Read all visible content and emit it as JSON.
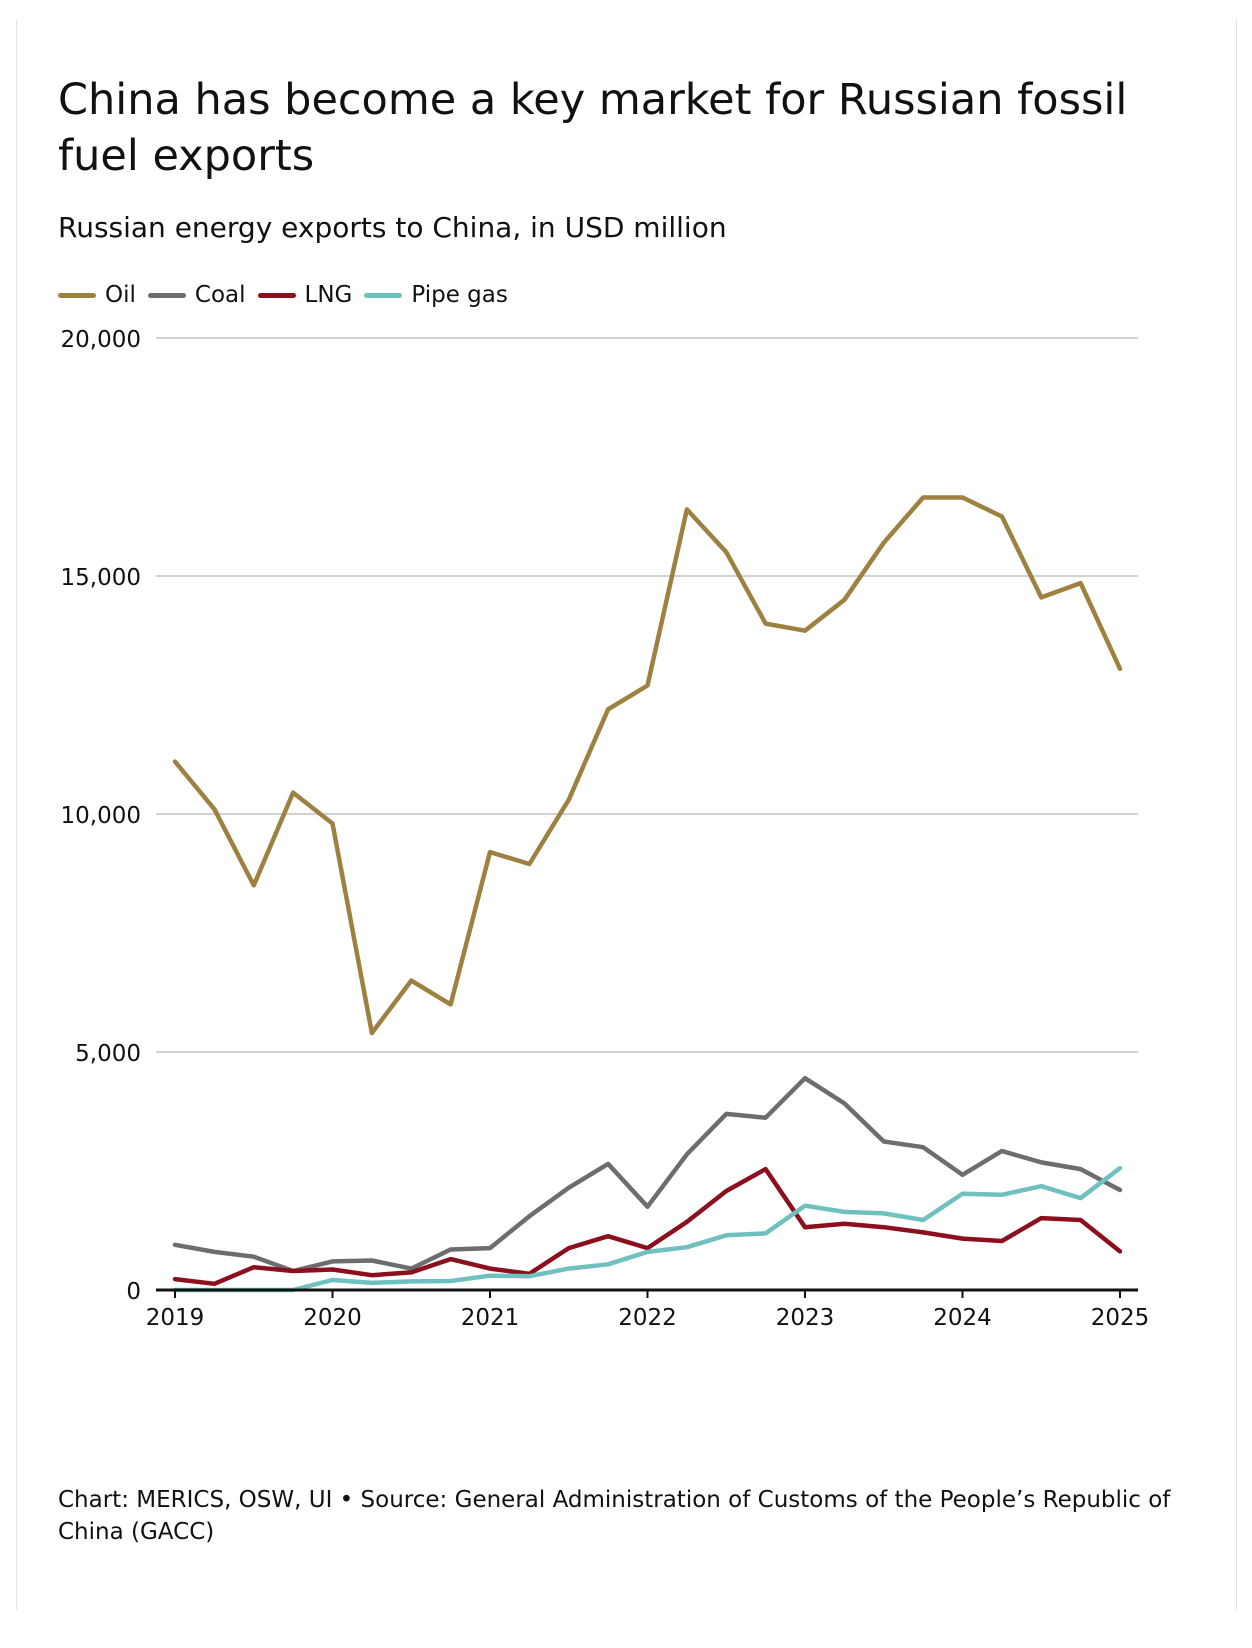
{
  "header": {
    "title": "China has become a key market for Russian fossil fuel exports",
    "subtitle": "Russian energy exports to China, in USD million"
  },
  "legend": [
    {
      "label": "Oil",
      "color": "#9e8140"
    },
    {
      "label": "Coal",
      "color": "#6d6d6f"
    },
    {
      "label": "LNG",
      "color": "#8c0f1e"
    },
    {
      "label": "Pipe gas",
      "color": "#6fc1c0"
    }
  ],
  "footer": {
    "source": "Chart: MERICS, OSW, UI • Source: General Administration of Customs of the People’s Republic of China (GACC)"
  },
  "chart_data": {
    "type": "line",
    "title": "China has become a key market for Russian fossil fuel exports",
    "subtitle": "Russian energy exports to China, in USD million",
    "xlabel": "",
    "ylabel": "",
    "x_tick_labels": [
      "2019",
      "2020",
      "2021",
      "2022",
      "2023",
      "2024",
      "2025"
    ],
    "y_tick_labels": [
      "0",
      "5,000",
      "10,000",
      "15,000",
      "20,000"
    ],
    "y_ticks": [
      0,
      5000,
      10000,
      15000,
      20000
    ],
    "xlim": [
      2019,
      2025
    ],
    "ylim": [
      0,
      20000
    ],
    "grid": "horizontal",
    "legend_position": "top-left",
    "x": [
      2019,
      2019.25,
      2019.5,
      2019.75,
      2020,
      2020.25,
      2020.5,
      2020.75,
      2021,
      2021.25,
      2021.5,
      2021.75,
      2022,
      2022.25,
      2022.5,
      2022.75,
      2023,
      2023.25,
      2023.5,
      2023.75,
      2024,
      2024.25,
      2024.5,
      2024.75,
      2025
    ],
    "series": [
      {
        "name": "Oil",
        "color": "#9e8140",
        "values": [
          11100,
          10100,
          8500,
          10450,
          9800,
          5400,
          6500,
          6000,
          9200,
          8950,
          10300,
          12200,
          12700,
          16400,
          15500,
          14000,
          13850,
          14500,
          15700,
          16650,
          16650,
          16250,
          14550,
          14850,
          13050
        ]
      },
      {
        "name": "Coal",
        "color": "#6d6d6f",
        "values": [
          950,
          800,
          700,
          400,
          600,
          620,
          450,
          850,
          880,
          1550,
          2150,
          2650,
          1750,
          2850,
          3700,
          3620,
          4450,
          3920,
          3120,
          3000,
          2420,
          2920,
          2680,
          2540,
          2100
        ]
      },
      {
        "name": "LNG",
        "color": "#8c0f1e",
        "values": [
          230,
          130,
          480,
          400,
          430,
          310,
          370,
          650,
          450,
          340,
          880,
          1130,
          880,
          1430,
          2080,
          2540,
          1320,
          1390,
          1320,
          1210,
          1080,
          1030,
          1510,
          1470,
          810
        ]
      },
      {
        "name": "Pipe gas",
        "color": "#6fc1c0",
        "values": [
          0,
          0,
          0,
          0,
          210,
          150,
          180,
          190,
          300,
          290,
          450,
          540,
          800,
          900,
          1150,
          1190,
          1770,
          1640,
          1610,
          1470,
          2020,
          2000,
          2180,
          1930,
          2560
        ]
      }
    ]
  }
}
